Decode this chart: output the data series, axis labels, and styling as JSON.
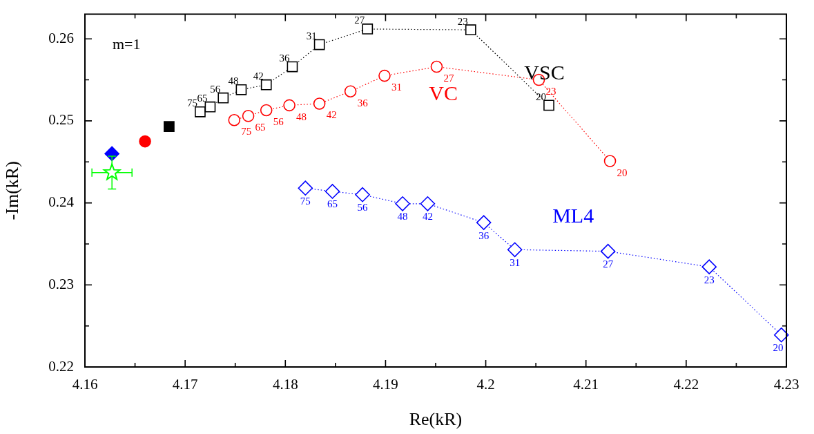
{
  "chart_data": {
    "type": "line",
    "xlabel": "Re(kR)",
    "ylabel": "-Im(kR)",
    "xlim": [
      4.16,
      4.23
    ],
    "ylim": [
      0.22,
      0.263
    ],
    "xticks": [
      4.16,
      {
        "value": 4.165,
        "label": null
      },
      4.17,
      {
        "value": 4.175,
        "label": null
      },
      4.18,
      {
        "value": 4.185,
        "label": null
      },
      4.19,
      {
        "value": 4.195,
        "label": null
      },
      4.2,
      {
        "value": 4.205,
        "label": null
      },
      4.21,
      {
        "value": 4.215,
        "label": null
      },
      4.22,
      {
        "value": 4.225,
        "label": null
      },
      4.23
    ],
    "yticks": [
      0.22,
      {
        "value": 0.225,
        "label": null
      },
      0.23,
      {
        "value": 0.235,
        "label": null
      },
      0.24,
      {
        "value": 0.245,
        "label": null
      },
      0.25,
      {
        "value": 0.255,
        "label": null
      },
      0.26
    ],
    "grid": false,
    "legend": false,
    "line_style": "dotted",
    "series": [
      {
        "name": "VSC",
        "marker": "square",
        "color": "#000000",
        "x": [
          4.1715,
          4.1725,
          4.1738,
          4.1756,
          4.1781,
          4.1807,
          4.1834,
          4.1882,
          4.1985,
          4.2063
        ],
        "values": [
          0.2511,
          0.2517,
          0.2528,
          0.2538,
          0.2544,
          0.2566,
          0.2593,
          0.2612,
          0.2611,
          0.2519
        ]
      },
      {
        "name": "VC",
        "marker": "circle",
        "color": "#ff0000",
        "x": [
          4.1749,
          4.1763,
          4.1781,
          4.1804,
          4.1834,
          4.1865,
          4.1899,
          4.1951,
          4.2053,
          4.2124
        ],
        "values": [
          0.2501,
          0.2506,
          0.2513,
          0.2519,
          0.2521,
          0.2536,
          0.2555,
          0.2566,
          0.255,
          0.2451
        ]
      },
      {
        "name": "ML4",
        "marker": "diamond",
        "color": "#0000ff",
        "x": [
          4.182,
          4.1847,
          4.1877,
          4.1917,
          4.1942,
          4.1998,
          4.2029,
          4.2122,
          4.2223,
          4.2295
        ],
        "values": [
          0.2418,
          0.2414,
          0.241,
          0.2399,
          0.2399,
          0.2376,
          0.2343,
          0.2341,
          0.2322,
          0.2239
        ]
      },
      {
        "type": "scatter",
        "marker": "square",
        "color": "#000000",
        "x": [
          4.1684
        ],
        "values": [
          0.2493
        ]
      },
      {
        "type": "scatter",
        "marker": "circle",
        "color": "#ff0000",
        "x": [
          4.166
        ],
        "values": [
          0.2475
        ]
      },
      {
        "type": "scatter",
        "marker": "diamond",
        "color": "#0000ff",
        "x": [
          4.1627
        ],
        "values": [
          0.246
        ]
      },
      {
        "type": "scatter",
        "marker": "star",
        "color": "#00ff00",
        "x": [
          4.1627
        ],
        "values": [
          0.2437
        ],
        "errors": [
          0.002
        ],
        "xerrors": [
          0.002
        ]
      }
    ],
    "annotations": [
      "m=1",
      {
        "text": "75",
        "x": 4.1715,
        "y": 0.2511
      },
      {
        "text": "65",
        "x": 4.1725,
        "y": 0.2517
      },
      {
        "text": "56",
        "x": 4.1738,
        "y": 0.2528
      },
      {
        "text": "48",
        "x": 4.1756,
        "y": 0.2538
      },
      {
        "text": "42",
        "x": 4.1781,
        "y": 0.2544
      },
      {
        "text": "36",
        "x": 4.1807,
        "y": 0.2566
      },
      {
        "text": "31",
        "x": 4.1834,
        "y": 0.2593
      },
      {
        "text": "27",
        "x": 4.1882,
        "y": 0.2612
      },
      {
        "text": "23",
        "x": 4.1985,
        "y": 0.2611
      },
      {
        "text": "20",
        "x": 4.2063,
        "y": 0.2519
      },
      {
        "text": "75",
        "x": 4.1749,
        "y": 0.2501
      },
      {
        "text": "65",
        "x": 4.1763,
        "y": 0.2506
      },
      {
        "text": "56",
        "x": 4.1781,
        "y": 0.2513
      },
      {
        "text": "48",
        "x": 4.1804,
        "y": 0.2519
      },
      {
        "text": "42",
        "x": 4.1834,
        "y": 0.2521
      },
      {
        "text": "36",
        "x": 4.1865,
        "y": 0.2536
      },
      {
        "text": "31",
        "x": 4.1899,
        "y": 0.2555
      },
      {
        "text": "27",
        "x": 4.1951,
        "y": 0.2566
      },
      {
        "text": "23",
        "x": 4.2053,
        "y": 0.255
      },
      {
        "text": "20",
        "x": 4.2124,
        "y": 0.2451
      },
      {
        "text": "75",
        "x": 4.182,
        "y": 0.2418
      },
      {
        "text": "65",
        "x": 4.1847,
        "y": 0.2414
      },
      {
        "text": "56",
        "x": 4.1877,
        "y": 0.241
      },
      {
        "text": "48",
        "x": 4.1917,
        "y": 0.2399
      },
      {
        "text": "42",
        "x": 4.1942,
        "y": 0.2399
      },
      {
        "text": "36",
        "x": 4.1998,
        "y": 0.2376
      },
      {
        "text": "31",
        "x": 4.2029,
        "y": 0.2343
      },
      {
        "text": "27",
        "x": 4.2122,
        "y": 0.2341
      },
      {
        "text": "23",
        "x": 4.2223,
        "y": 0.2322
      },
      {
        "text": "20",
        "x": 4.2295,
        "y": 0.2239
      }
    ]
  }
}
